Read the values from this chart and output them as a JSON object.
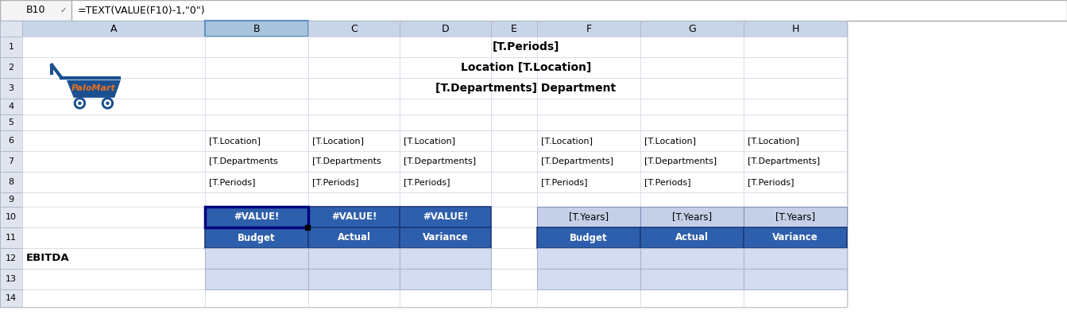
{
  "formula_bar_cell": "B10",
  "formula_bar_text": "=TEXT(VALUE(F10)-1,\"0\")",
  "col_headers": [
    "A",
    "B",
    "C",
    "D",
    "E",
    "F",
    "G",
    "H"
  ],
  "row_headers": [
    "1",
    "2",
    "3",
    "4",
    "5",
    "6",
    "7",
    "8",
    "9",
    "10",
    "11",
    "12",
    "13",
    "14"
  ],
  "title_row1": "[T.Periods]",
  "title_row2": "Location [T.Location]",
  "title_row3": "[T.Departments] Department",
  "header_col_color": "#C8D4E8",
  "selected_col_color": "#A8C4DC",
  "cell_bg": "#FFFFFF",
  "blue_header_dark": "#2E5FAC",
  "blue_cell_light": "#C5D0E8",
  "blue_cell_lighter": "#D4DCF0",
  "token_row6": [
    "[T.Location]",
    "[T.Location]",
    "[T.Location]",
    "",
    "[T.Location]",
    "[T.Location]",
    "[T.Location]"
  ],
  "token_row7": [
    "[T.Departments",
    "[T.Departments",
    "[T.Departments]",
    "",
    "[T.Departments]",
    "[T.Departments]",
    "[T.Departments]"
  ],
  "token_row8": [
    "[T.Periods]",
    "[T.Periods]",
    "[T.Periods]",
    "",
    "[T.Periods]",
    "[T.Periods]",
    "[T.Periods]"
  ],
  "row10_left": [
    "#VALUE!",
    "#VALUE!",
    "#VALUE!"
  ],
  "row10_right": [
    "[T.Years]",
    "[T.Years]",
    "[T.Years]"
  ],
  "row11_left": [
    "Budget",
    "Actual",
    "Variance"
  ],
  "row11_right": [
    "Budget",
    "Actual",
    "Variance"
  ],
  "row12_label": "EBITDA",
  "logo_text": "PaloMart",
  "logo_color": "#E87020",
  "cart_color": "#1A5090"
}
